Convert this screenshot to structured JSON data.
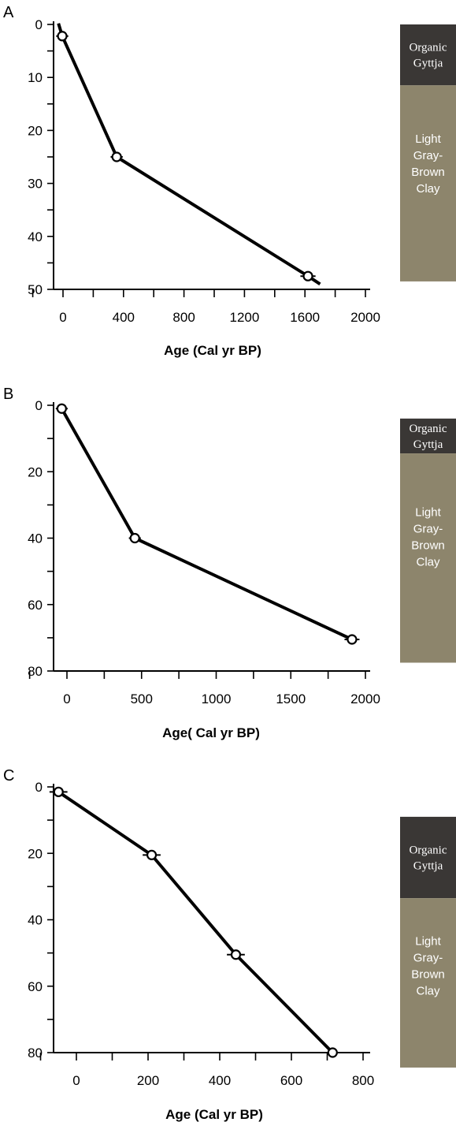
{
  "chart_data": [
    {
      "type": "line",
      "panel_label": "A",
      "xlabel": "Age (Cal yr BP)",
      "ylabel": "",
      "xlim": [
        -30,
        2000
      ],
      "ylim": [
        0,
        50
      ],
      "x_ticks": [
        0,
        400,
        800,
        1200,
        1600,
        2000
      ],
      "y_ticks": [
        0,
        10,
        20,
        30,
        40,
        50
      ],
      "points": [
        {
          "x": -5,
          "y": 2.2,
          "xerr": 40
        },
        {
          "x": 355,
          "y": 25,
          "xerr": 40
        },
        {
          "x": 1620,
          "y": 47.5,
          "xerr": 50
        }
      ],
      "line_extent": {
        "x0": -30,
        "y0": -0.2,
        "x1": 1700,
        "y1": 49
      },
      "strat": [
        {
          "label": "Organic Gyttja",
          "top": 0,
          "bottom": 11.5,
          "color": "#3a3735"
        },
        {
          "label": "Light Gray-Brown Clay",
          "top": 11.5,
          "bottom": 48.5,
          "color": "#8d856c"
        }
      ]
    },
    {
      "type": "line",
      "panel_label": "B",
      "xlabel": "Age( Cal yr BP)",
      "ylabel": "",
      "xlim": [
        -30,
        2000
      ],
      "ylim": [
        0,
        80
      ],
      "x_ticks": [
        0,
        500,
        1000,
        1500,
        2000
      ],
      "y_ticks": [
        0,
        20,
        40,
        60,
        80
      ],
      "points": [
        {
          "x": -35,
          "y": 1,
          "xerr": 40
        },
        {
          "x": 455,
          "y": 40,
          "xerr": 40
        },
        {
          "x": 1910,
          "y": 70.5,
          "xerr": 50
        }
      ],
      "line_extent": null,
      "strat": [
        {
          "label": "Organic Gyttja",
          "top": 4,
          "bottom": 14.5,
          "color": "#3a3735"
        },
        {
          "label": "Light Gray-Brown Clay",
          "top": 14.5,
          "bottom": 77.5,
          "color": "#8d856c"
        }
      ]
    },
    {
      "type": "line",
      "panel_label": "C",
      "xlabel": "Age (Cal yr BP)",
      "ylabel": "",
      "xlim": [
        -70,
        800
      ],
      "ylim": [
        0,
        80
      ],
      "x_ticks": [
        0,
        200,
        400,
        600,
        800
      ],
      "y_ticks": [
        0,
        20,
        40,
        60,
        80
      ],
      "points": [
        {
          "x": -50,
          "y": 1.5,
          "xerr": 25
        },
        {
          "x": 210,
          "y": 20.5,
          "xerr": 25
        },
        {
          "x": 445,
          "y": 50.5,
          "xerr": 25
        },
        {
          "x": 715,
          "y": 80,
          "xerr": 25
        }
      ],
      "line_extent": null,
      "strat": [
        {
          "label": "Organic Gyttja",
          "top": 9,
          "bottom": 33.5,
          "color": "#3a3735"
        },
        {
          "label": "Light Gray-Brown Clay",
          "top": 33.5,
          "bottom": 84.5,
          "color": "#8d856c"
        }
      ]
    }
  ]
}
